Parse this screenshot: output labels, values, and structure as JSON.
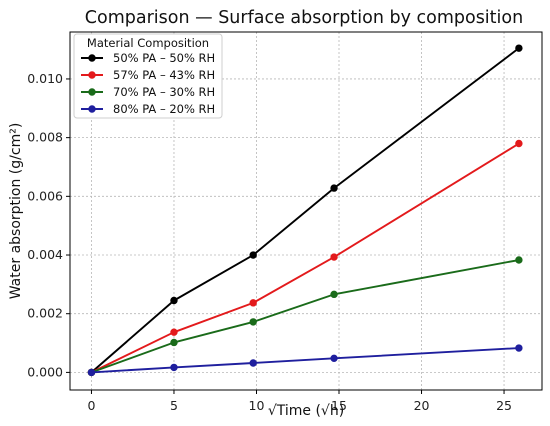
{
  "chart_data": {
    "type": "line",
    "title": "Comparison — Surface absorption by composition",
    "xlabel": "√Time (√h)",
    "ylabel": "Water absorption (g/cm²)",
    "xlim": [
      -1.3,
      27.3
    ],
    "ylim": [
      -0.0006,
      0.0116
    ],
    "x_ticks": [
      0,
      5,
      10,
      15,
      20,
      25
    ],
    "x_tick_labels": [
      "0",
      "5",
      "10",
      "15",
      "20",
      "25"
    ],
    "y_ticks": [
      0.0,
      0.002,
      0.004,
      0.006,
      0.008,
      0.01
    ],
    "y_tick_labels": [
      "0.000",
      "0.002",
      "0.004",
      "0.006",
      "0.008",
      "0.010"
    ],
    "grid": true,
    "legend": {
      "title": "Material Composition",
      "position": "top-left"
    },
    "series": [
      {
        "name": "50% PA – 50% RH",
        "color": "#000000",
        "x": [
          0,
          5,
          9.8,
          14.7,
          25.9
        ],
        "y": [
          0.0,
          0.00245,
          0.004,
          0.00628,
          0.01105
        ]
      },
      {
        "name": "57% PA – 43% RH",
        "color": "#e31a1c",
        "x": [
          0,
          5,
          9.8,
          14.7,
          25.9
        ],
        "y": [
          0.0,
          0.00137,
          0.00237,
          0.00393,
          0.0078
        ]
      },
      {
        "name": "70% PA – 30% RH",
        "color": "#1a6b1a",
        "x": [
          0,
          5,
          9.8,
          14.7,
          25.9
        ],
        "y": [
          0.0,
          0.00102,
          0.00172,
          0.00266,
          0.00383
        ]
      },
      {
        "name": "80% PA – 20% RH",
        "color": "#1f1f9e",
        "x": [
          0,
          5,
          9.8,
          14.7,
          25.9
        ],
        "y": [
          0.0,
          0.00017,
          0.00032,
          0.00048,
          0.00083
        ]
      }
    ]
  }
}
